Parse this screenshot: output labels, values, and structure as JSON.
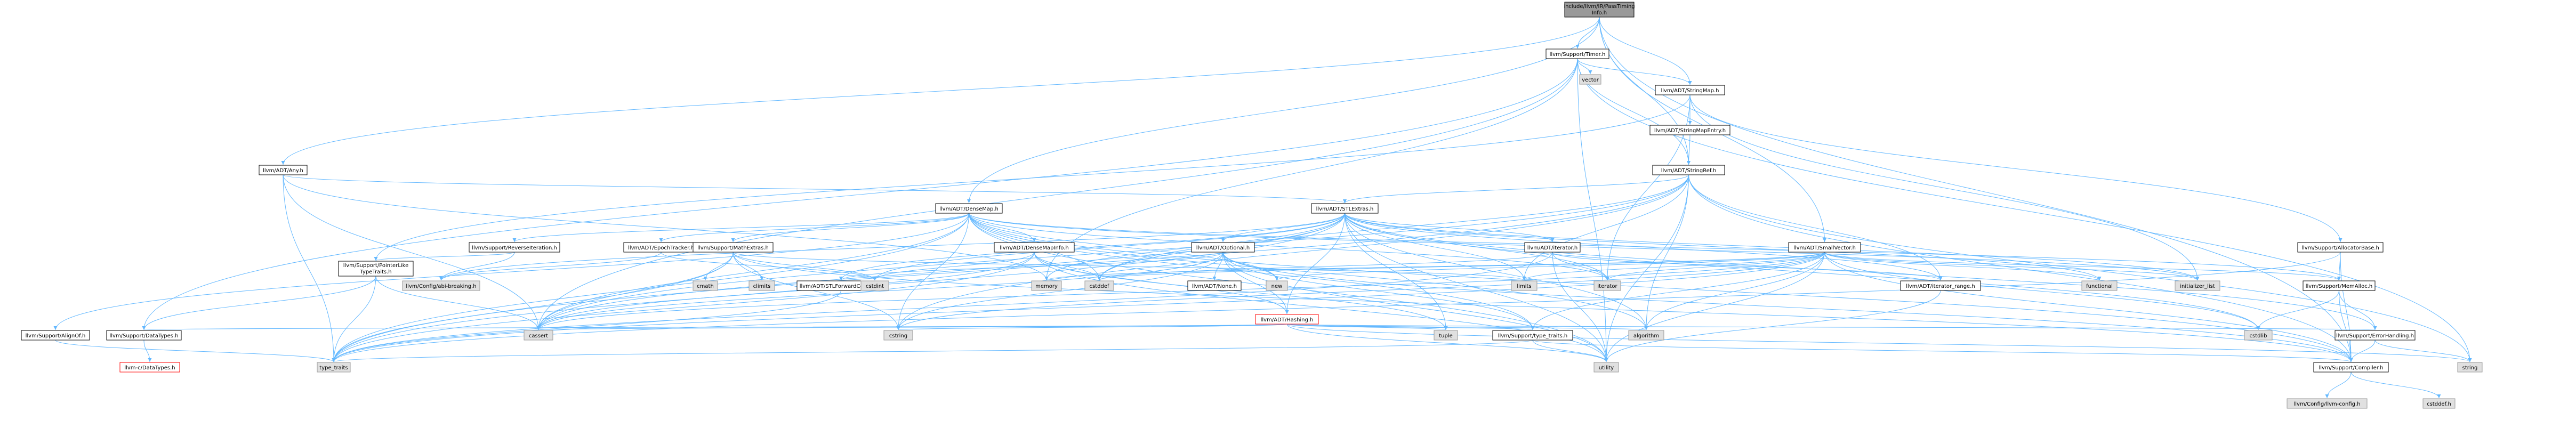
{
  "colors": {
    "root_fill": "#999999",
    "node_fill": "#ffffff",
    "system_fill": "#e0e0e0",
    "missing_fill": "#ffffff",
    "missing_border": "#ff0000",
    "edge": "#63b8ff"
  },
  "nodes": [
    {
      "id": "root",
      "label": "include/llvm/IR/PassTiming Info.h",
      "kind": "root"
    },
    {
      "id": "timer",
      "label": "llvm/Support/Timer.h",
      "kind": "file"
    },
    {
      "id": "any",
      "label": "llvm/ADT/Any.h",
      "kind": "file"
    },
    {
      "id": "vector",
      "label": "vector",
      "kind": "system"
    },
    {
      "id": "stringmap",
      "label": "llvm/ADT/StringMap.h",
      "kind": "file"
    },
    {
      "id": "stringmapentry",
      "label": "llvm/ADT/StringMapEntry.h",
      "kind": "file"
    },
    {
      "id": "stringref",
      "label": "llvm/ADT/StringRef.h",
      "kind": "file"
    },
    {
      "id": "densemap",
      "label": "llvm/ADT/DenseMap.h",
      "kind": "file"
    },
    {
      "id": "stlextras",
      "label": "llvm/ADT/STLExtras.h",
      "kind": "file"
    },
    {
      "id": "allocatorbase",
      "label": "llvm/Support/AllocatorBase.h",
      "kind": "file"
    },
    {
      "id": "reverseiteration",
      "label": "llvm/Support/ReverseIteration.h",
      "kind": "file"
    },
    {
      "id": "epochtracker",
      "label": "llvm/ADT/EpochTracker.h",
      "kind": "file"
    },
    {
      "id": "mathextras",
      "label": "llvm/Support/MathExtras.h",
      "kind": "file"
    },
    {
      "id": "densemapinfo",
      "label": "llvm/ADT/DenseMapInfo.h",
      "kind": "file"
    },
    {
      "id": "optional",
      "label": "llvm/ADT/Optional.h",
      "kind": "file"
    },
    {
      "id": "iterator",
      "label": "llvm/ADT/iterator.h",
      "kind": "file"
    },
    {
      "id": "smallvector",
      "label": "llvm/ADT/SmallVector.h",
      "kind": "file"
    },
    {
      "id": "pointerliketypetraits",
      "label": "llvm/Support/PointerLike TypeTraits.h",
      "kind": "file"
    },
    {
      "id": "memalloc",
      "label": "llvm/Support/MemAlloc.h",
      "kind": "file"
    },
    {
      "id": "alignof",
      "label": "llvm/Support/AlignOf.h",
      "kind": "file"
    },
    {
      "id": "datatypes",
      "label": "llvm/Support/DataTypes.h",
      "kind": "file"
    },
    {
      "id": "cdatatypes",
      "label": "llvm-c/DataTypes.h",
      "kind": "missing"
    },
    {
      "id": "configabi",
      "label": "llvm/Config/abi-breaking.h",
      "kind": "system"
    },
    {
      "id": "cmath",
      "label": "cmath",
      "kind": "system"
    },
    {
      "id": "climits",
      "label": "climits",
      "kind": "system"
    },
    {
      "id": "stlforward",
      "label": "llvm/ADT/STLForwardCompat.h",
      "kind": "file"
    },
    {
      "id": "cstdint",
      "label": "cstdint",
      "kind": "system"
    },
    {
      "id": "memory",
      "label": "memory",
      "kind": "system"
    },
    {
      "id": "cstddef",
      "label": "cstddef",
      "kind": "system"
    },
    {
      "id": "none",
      "label": "llvm/ADT/None.h",
      "kind": "file"
    },
    {
      "id": "hashing",
      "label": "llvm/ADT/Hashing.h",
      "kind": "missing"
    },
    {
      "id": "new",
      "label": "new",
      "kind": "system"
    },
    {
      "id": "limits",
      "label": "limits",
      "kind": "system"
    },
    {
      "id": "iteratorh",
      "label": "iterator",
      "kind": "system"
    },
    {
      "id": "iteratorrange",
      "label": "llvm/ADT/iterator_range.h",
      "kind": "file"
    },
    {
      "id": "functional",
      "label": "functional",
      "kind": "system"
    },
    {
      "id": "initlist",
      "label": "initializer_list",
      "kind": "system"
    },
    {
      "id": "errorhandling",
      "label": "llvm/Support/ErrorHandling.h",
      "kind": "file"
    },
    {
      "id": "cassert",
      "label": "cassert",
      "kind": "system"
    },
    {
      "id": "cstring",
      "label": "cstring",
      "kind": "system"
    },
    {
      "id": "typetraitsllvm",
      "label": "llvm/Support/type_traits.h",
      "kind": "file"
    },
    {
      "id": "tuple",
      "label": "tuple",
      "kind": "system"
    },
    {
      "id": "algorithm",
      "label": "algorithm",
      "kind": "system"
    },
    {
      "id": "cstdlib",
      "label": "cstdlib",
      "kind": "system"
    },
    {
      "id": "compiler",
      "label": "llvm/Support/Compiler.h",
      "kind": "file"
    },
    {
      "id": "string",
      "label": "string",
      "kind": "system"
    },
    {
      "id": "typetraits",
      "label": "type_traits",
      "kind": "system"
    },
    {
      "id": "utility",
      "label": "utility",
      "kind": "system"
    },
    {
      "id": "llvmconfig",
      "label": "llvm/Config/llvm-config.h",
      "kind": "system"
    },
    {
      "id": "cstddefh",
      "label": "cstddef.h",
      "kind": "system"
    }
  ],
  "edges": [
    [
      "root",
      "timer"
    ],
    [
      "root",
      "stringmap"
    ],
    [
      "root",
      "stringref"
    ],
    [
      "root",
      "any"
    ],
    [
      "root",
      "densemap"
    ],
    [
      "root",
      "smallvector"
    ],
    [
      "root",
      "compiler"
    ],
    [
      "timer",
      "vector"
    ],
    [
      "timer",
      "stringmap"
    ],
    [
      "timer",
      "stringref"
    ],
    [
      "timer",
      "datatypes"
    ],
    [
      "timer",
      "cassert"
    ],
    [
      "timer",
      "memory"
    ],
    [
      "timer",
      "string"
    ],
    [
      "timer",
      "utility"
    ],
    [
      "any",
      "memory"
    ],
    [
      "any",
      "stlextras"
    ],
    [
      "any",
      "cassert"
    ],
    [
      "any",
      "typetraits"
    ],
    [
      "stringmap",
      "stringmapentry"
    ],
    [
      "stringmap",
      "allocatorbase"
    ],
    [
      "stringmap",
      "pointerliketypetraits"
    ],
    [
      "stringmap",
      "iteratorh"
    ],
    [
      "stringmap",
      "initlist"
    ],
    [
      "stringmapentry",
      "stringref"
    ],
    [
      "stringref",
      "stlextras"
    ],
    [
      "stringref",
      "iteratorrange"
    ],
    [
      "stringref",
      "compiler"
    ],
    [
      "stringref",
      "algorithm"
    ],
    [
      "stringref",
      "cassert"
    ],
    [
      "stringref",
      "cstddef"
    ],
    [
      "stringref",
      "cstring"
    ],
    [
      "stringref",
      "limits"
    ],
    [
      "stringref",
      "string"
    ],
    [
      "stringref",
      "typetraits"
    ],
    [
      "stringref",
      "utility"
    ],
    [
      "densemap",
      "densemapinfo"
    ],
    [
      "densemap",
      "epochtracker"
    ],
    [
      "densemap",
      "alignof"
    ],
    [
      "densemap",
      "compiler"
    ],
    [
      "densemap",
      "mathextras"
    ],
    [
      "densemap",
      "memalloc"
    ],
    [
      "densemap",
      "reverseiteration"
    ],
    [
      "densemap",
      "typetraitsllvm"
    ],
    [
      "densemap",
      "algorithm"
    ],
    [
      "densemap",
      "cassert"
    ],
    [
      "densemap",
      "cstddef"
    ],
    [
      "densemap",
      "cstring"
    ],
    [
      "densemap",
      "initlist"
    ],
    [
      "densemap",
      "iteratorh"
    ],
    [
      "densemap",
      "new"
    ],
    [
      "densemap",
      "typetraits"
    ],
    [
      "densemap",
      "utility"
    ],
    [
      "stlextras",
      "stlforward"
    ],
    [
      "stlextras",
      "hashing"
    ],
    [
      "stlextras",
      "optional"
    ],
    [
      "stlextras",
      "iterator"
    ],
    [
      "stlextras",
      "iteratorrange"
    ],
    [
      "stlextras",
      "errorhandling"
    ],
    [
      "stlextras",
      "configabi"
    ],
    [
      "stlextras",
      "algorithm"
    ],
    [
      "stlextras",
      "cassert"
    ],
    [
      "stlextras",
      "cstddef"
    ],
    [
      "stlextras",
      "cstdint"
    ],
    [
      "stlextras",
      "cstdlib"
    ],
    [
      "stlextras",
      "functional"
    ],
    [
      "stlextras",
      "initlist"
    ],
    [
      "stlextras",
      "iteratorh"
    ],
    [
      "stlextras",
      "limits"
    ],
    [
      "stlextras",
      "memory"
    ],
    [
      "stlextras",
      "tuple"
    ],
    [
      "stlextras",
      "typetraits"
    ],
    [
      "stlextras",
      "utility"
    ],
    [
      "allocatorbase",
      "compiler"
    ],
    [
      "allocatorbase",
      "memalloc"
    ],
    [
      "allocatorbase",
      "typetraits"
    ],
    [
      "reverseiteration",
      "configabi"
    ],
    [
      "reverseiteration",
      "pointerliketypetraits"
    ],
    [
      "epochtracker",
      "configabi"
    ],
    [
      "epochtracker",
      "cstdint"
    ],
    [
      "mathextras",
      "compiler"
    ],
    [
      "mathextras",
      "cassert"
    ],
    [
      "mathextras",
      "climits"
    ],
    [
      "mathextras",
      "cmath"
    ],
    [
      "mathextras",
      "cstdint"
    ],
    [
      "mathextras",
      "cstring"
    ],
    [
      "mathextras",
      "limits"
    ],
    [
      "mathextras",
      "typetraits"
    ],
    [
      "densemapinfo",
      "hashing"
    ],
    [
      "densemapinfo",
      "cassert"
    ],
    [
      "densemapinfo",
      "cstddef"
    ],
    [
      "densemapinfo",
      "cstdint"
    ],
    [
      "densemapinfo",
      "tuple"
    ],
    [
      "densemapinfo",
      "typetraits"
    ],
    [
      "densemapinfo",
      "utility"
    ],
    [
      "optional",
      "hashing"
    ],
    [
      "optional",
      "none"
    ],
    [
      "optional",
      "stlforward"
    ],
    [
      "optional",
      "compiler"
    ],
    [
      "optional",
      "typetraitsllvm"
    ],
    [
      "optional",
      "cassert"
    ],
    [
      "optional",
      "cstring"
    ],
    [
      "optional",
      "new"
    ],
    [
      "optional",
      "utility"
    ],
    [
      "iterator",
      "iteratorrange"
    ],
    [
      "iterator",
      "cstddef"
    ],
    [
      "iterator",
      "iteratorh"
    ],
    [
      "iterator",
      "typetraits"
    ],
    [
      "iterator",
      "utility"
    ],
    [
      "smallvector",
      "compiler"
    ],
    [
      "smallvector",
      "memalloc"
    ],
    [
      "smallvector",
      "typetraitsllvm"
    ],
    [
      "smallvector",
      "algorithm"
    ],
    [
      "smallvector",
      "cassert"
    ],
    [
      "smallvector",
      "cstddef"
    ],
    [
      "smallvector",
      "cstdlib"
    ],
    [
      "smallvector",
      "cstring"
    ],
    [
      "smallvector",
      "functional"
    ],
    [
      "smallvector",
      "initlist"
    ],
    [
      "smallvector",
      "iteratorh"
    ],
    [
      "smallvector",
      "limits"
    ],
    [
      "smallvector",
      "memory"
    ],
    [
      "smallvector",
      "new"
    ],
    [
      "smallvector",
      "typetraits"
    ],
    [
      "smallvector",
      "utility"
    ],
    [
      "pointerliketypetraits",
      "datatypes"
    ],
    [
      "pointerliketypetraits",
      "cassert"
    ],
    [
      "pointerliketypetraits",
      "typetraits"
    ],
    [
      "memalloc",
      "compiler"
    ],
    [
      "memalloc",
      "errorhandling"
    ],
    [
      "memalloc",
      "cstdlib"
    ],
    [
      "alignof",
      "typetraits"
    ],
    [
      "datatypes",
      "cdatatypes"
    ],
    [
      "stlforward",
      "typetraits"
    ],
    [
      "hashing",
      "errorhandling"
    ],
    [
      "hashing",
      "datatypes"
    ],
    [
      "hashing",
      "typetraitsllvm"
    ],
    [
      "hashing",
      "algorithm"
    ],
    [
      "hashing",
      "cassert"
    ],
    [
      "hashing",
      "cstring"
    ],
    [
      "hashing",
      "string"
    ],
    [
      "hashing",
      "tuple"
    ],
    [
      "hashing",
      "utility"
    ],
    [
      "iteratorrange",
      "utility"
    ],
    [
      "errorhandling",
      "compiler"
    ],
    [
      "errorhandling",
      "string"
    ],
    [
      "typetraitsllvm",
      "compiler"
    ],
    [
      "typetraitsllvm",
      "typetraits"
    ],
    [
      "typetraitsllvm",
      "utility"
    ],
    [
      "compiler",
      "llvmconfig"
    ],
    [
      "compiler",
      "cstddefh"
    ]
  ]
}
